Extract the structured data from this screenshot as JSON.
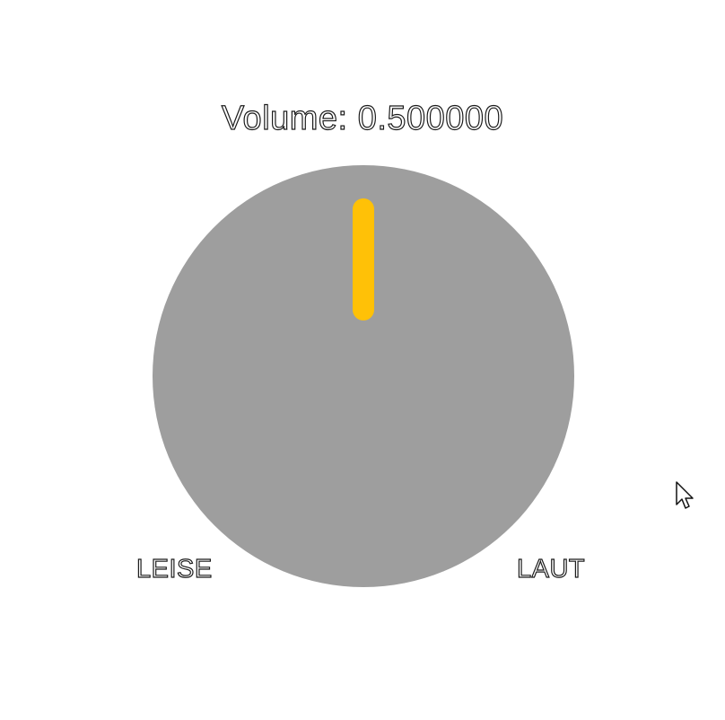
{
  "readout": {
    "label": "Volume: ",
    "value_text": "0.500000"
  },
  "knob": {
    "value": 0.5,
    "min_label": "LEISE",
    "max_label": "LAUT",
    "face_color": "#9e9e9e",
    "indicator_color": "#ffc107"
  },
  "cursor": {
    "icon": "arrow-cursor-icon"
  }
}
